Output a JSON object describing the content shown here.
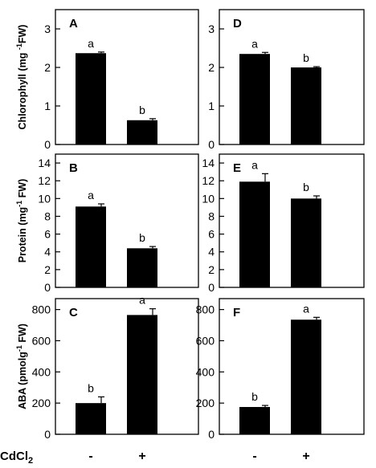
{
  "x_axis": {
    "label": "CdCl",
    "label_subscript": "2",
    "ticks": [
      "-",
      "+"
    ]
  },
  "chart_data": [
    {
      "type": "bar",
      "panel": "A",
      "categories": [
        "-",
        "+"
      ],
      "values": [
        2.37,
        0.63
      ],
      "errors": [
        0.03,
        0.04
      ],
      "letters": [
        "a",
        "b"
      ],
      "ylim": [
        0,
        3.5
      ],
      "yticks": [
        0,
        1,
        2,
        3
      ],
      "ylabel": {
        "pre": "Chlorophyll (mg ",
        "sup": "-1",
        "post": "FW)"
      }
    },
    {
      "type": "bar",
      "panel": "D",
      "categories": [
        "-",
        "+"
      ],
      "values": [
        2.35,
        2.0
      ],
      "errors": [
        0.04,
        0.02
      ],
      "letters": [
        "a",
        "b"
      ],
      "ylim": [
        0,
        3.5
      ],
      "yticks": [
        0,
        1,
        2,
        3
      ]
    },
    {
      "type": "bar",
      "panel": "B",
      "categories": [
        "-",
        "+"
      ],
      "values": [
        9.1,
        4.4
      ],
      "errors": [
        0.3,
        0.2
      ],
      "letters": [
        "a",
        "b"
      ],
      "ylim": [
        0,
        15
      ],
      "yticks": [
        0,
        2,
        4,
        6,
        8,
        10,
        12,
        14
      ],
      "ylabel": {
        "pre": "Protein (mg",
        "sup": "-1",
        "post": " FW)"
      }
    },
    {
      "type": "bar",
      "panel": "E",
      "categories": [
        "-",
        "+"
      ],
      "values": [
        11.9,
        10.0
      ],
      "errors": [
        0.9,
        0.3
      ],
      "letters": [
        "a",
        "b"
      ],
      "ylim": [
        0,
        15
      ],
      "yticks": [
        0,
        2,
        4,
        6,
        8,
        10,
        12,
        14
      ]
    },
    {
      "type": "bar",
      "panel": "C",
      "categories": [
        "-",
        "+"
      ],
      "values": [
        200,
        765
      ],
      "errors": [
        40,
        40
      ],
      "letters": [
        "b",
        "a"
      ],
      "ylim": [
        0,
        870
      ],
      "yticks": [
        0,
        200,
        400,
        600,
        800
      ],
      "ylabel": {
        "pre": "ABA (pmolg",
        "sup": "-1",
        "post": " FW)"
      }
    },
    {
      "type": "bar",
      "panel": "F",
      "categories": [
        "-",
        "+"
      ],
      "values": [
        175,
        735
      ],
      "errors": [
        10,
        15
      ],
      "letters": [
        "b",
        "a"
      ],
      "ylim": [
        0,
        870
      ],
      "yticks": [
        0,
        200,
        400,
        600,
        800
      ]
    }
  ]
}
